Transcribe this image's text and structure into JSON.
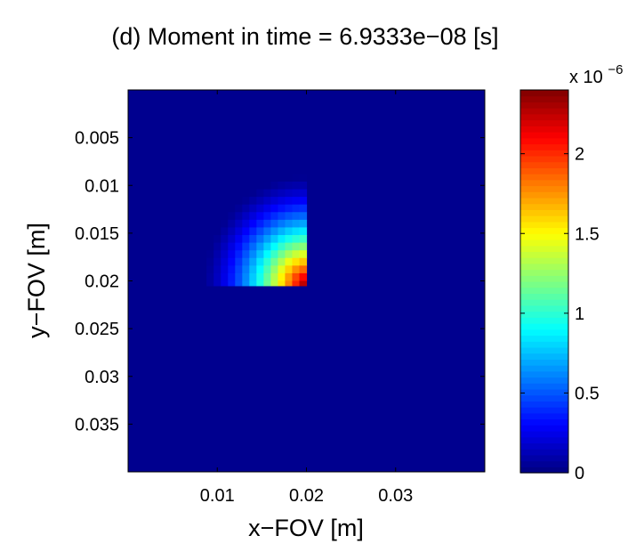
{
  "chart_data": {
    "type": "heatmap",
    "title": "(d) Moment in time = 6.9333e−08 [s]",
    "xlabel": "x−FOV [m]",
    "ylabel": "y−FOV [m]",
    "xlim": [
      0,
      0.04
    ],
    "ylim": [
      0.04,
      0
    ],
    "y_axis_direction": "reversed",
    "x_ticks": [
      0.01,
      0.02,
      0.03
    ],
    "x_tick_labels": [
      "0.01",
      "0.02",
      "0.03"
    ],
    "y_ticks": [
      0.005,
      0.01,
      0.015,
      0.02,
      0.025,
      0.03,
      0.035
    ],
    "y_tick_labels": [
      "0.005",
      "0.01",
      "0.015",
      "0.02",
      "0.025",
      "0.03",
      "0.035"
    ],
    "colormap": "jet",
    "colorbar": {
      "clim": [
        0,
        2.4e-06
      ],
      "ticks": [
        0,
        5e-07,
        1e-06,
        1.5e-06,
        2e-06
      ],
      "tick_labels": [
        "0",
        "0.5",
        "1",
        "1.5",
        "2"
      ],
      "multiplier_base": "x 10",
      "multiplier_exponent": "−6"
    },
    "field": {
      "description": "quarter-disc intensity region",
      "center_xy": [
        0.02,
        0.0205
      ],
      "radius": 0.0125,
      "peak_value": 2.4e-06,
      "x_max": 0.02,
      "y_max": 0.0205,
      "grid_step": 0.0008
    },
    "grid": false
  }
}
